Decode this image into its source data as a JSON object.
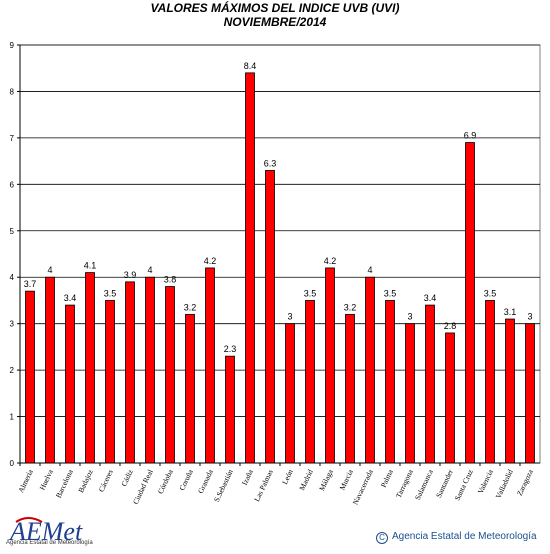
{
  "chart_data": {
    "type": "bar",
    "title": "VALORES MÁXIMOS DEL INDICE UVB (UVI)",
    "subtitle": "NOVIEMBRE/2014",
    "categories": [
      "Almería",
      "Huelva",
      "Barcelona",
      "Badajoz",
      "Cáceres",
      "Cádiz",
      "Ciudad Real",
      "Córdoba",
      "Coruña",
      "Granada",
      "S.Sebastián",
      "Izaña",
      "Las Palmas",
      "León",
      "Madrid",
      "Málaga",
      "Murcia",
      "Navacerrada",
      "Palma",
      "Tarragona",
      "Salamanca",
      "Santander",
      "Santa Cruz",
      "Valencia",
      "Valladolid",
      "Zaragoza"
    ],
    "values": [
      3.7,
      4,
      3.4,
      4.1,
      3.5,
      3.9,
      4,
      3.8,
      3.2,
      4.2,
      2.3,
      8.4,
      6.3,
      3,
      3.5,
      4.2,
      3.2,
      4,
      3.5,
      3,
      3.4,
      2.8,
      6.9,
      3.5,
      3.1,
      3
    ],
    "labels": [
      "3.7",
      "4",
      "3.4",
      "4.1",
      "3.5",
      "3.9",
      "4",
      "3.8",
      "3.2",
      "4.2",
      "2.3",
      "8.4",
      "6.3",
      "3",
      "3.5",
      "4.2",
      "3.2",
      "4",
      "3.5",
      "3",
      "3.4",
      "2.8",
      "6.9",
      "3.5",
      "3.1",
      "3"
    ],
    "yticks": [
      "0",
      "1",
      "2",
      "3",
      "4",
      "5",
      "6",
      "7",
      "8",
      "9"
    ],
    "ylim": [
      0,
      9
    ],
    "grid": true,
    "bar_color": "#ff0000",
    "bar_edge_color": "#000000"
  },
  "footer": {
    "logo_text": "AEMet",
    "logo_subtext": "Agencia Estatal de Meteorología",
    "credit": "Agencia Estatal de Meteorología",
    "credit_symbol": "C"
  }
}
